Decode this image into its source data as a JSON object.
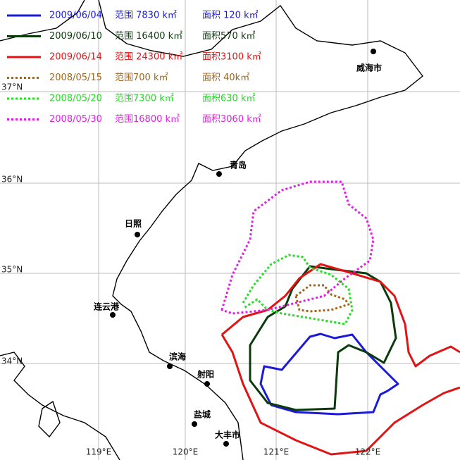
{
  "legend": [
    {
      "date": "2009/06/04",
      "range": "范围 7830 k㎡",
      "area": "面积 120 k㎡",
      "color": "#1a1ad8",
      "dash": "solid"
    },
    {
      "date": "2009/06/10",
      "range": "范围 16400 k㎡",
      "area": "面积570 k㎡",
      "color": "#0b3a0b",
      "dash": "solid"
    },
    {
      "date": "2009/06/14",
      "range": "范围 24300 k㎡",
      "area": "面积3100 k㎡",
      "color": "#e01414",
      "dash": "solid"
    },
    {
      "date": "2008/05/15",
      "range": "范围700 k㎡",
      "area": "面积 40k㎡",
      "color": "#a0661a",
      "dash": "dotted"
    },
    {
      "date": "2008/05/20",
      "range": "范围7300 k㎡",
      "area": "面积630 k㎡",
      "color": "#22dd22",
      "dash": "dotted"
    },
    {
      "date": "2008/05/30",
      "range": "范围16800 k㎡",
      "area": "面积3060 k㎡",
      "color": "#e020e0",
      "dash": "dotted"
    }
  ],
  "cities": [
    "威海市",
    "青岛",
    "日照",
    "连云港",
    "滨海",
    "射阳",
    "盐城",
    "大丰市"
  ],
  "latitude_labels": [
    "37°N",
    "36°N",
    "35°N",
    "34°N"
  ],
  "longitude_labels": [
    "119°E",
    "120°E",
    "121°E",
    "122°E"
  ]
}
